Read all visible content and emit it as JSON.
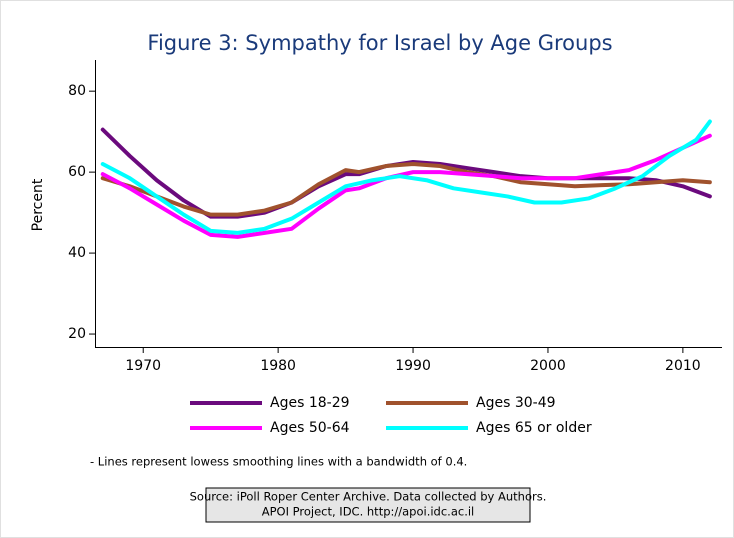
{
  "chart_data": {
    "type": "line",
    "title": "Figure 3: Sympathy for Israel by Age Groups",
    "y_label": "Percent",
    "xlim": [
      1966.5,
      2012.9
    ],
    "xticks": [
      1970,
      1980,
      1990,
      2000,
      2010
    ],
    "ylim": [
      16.8,
      87.7
    ],
    "yticks": [
      20,
      40,
      60,
      80
    ],
    "grid": false,
    "legend": "bottom",
    "series": [
      {
        "name": "Ages 18-29",
        "color": "#6b0a7d",
        "x": [
          1967,
          1969,
          1971,
          1973,
          1975,
          1977,
          1979,
          1981,
          1983,
          1985,
          1986,
          1988,
          1990,
          1992,
          1994,
          1996,
          1998,
          2000,
          2002,
          2004,
          2006,
          2008,
          2010,
          2012
        ],
        "values": [
          70.5,
          64,
          58,
          53,
          49,
          49,
          50,
          52.5,
          56.5,
          59.5,
          59.5,
          61.5,
          62.5,
          62,
          61,
          60,
          59,
          58.5,
          58.5,
          58.5,
          58.5,
          58,
          56.5,
          54
        ]
      },
      {
        "name": "Ages 30-49",
        "color": "#a0522d",
        "x": [
          1967,
          1969,
          1971,
          1973,
          1975,
          1977,
          1979,
          1981,
          1983,
          1985,
          1986,
          1988,
          1990,
          1992,
          1994,
          1996,
          1998,
          2000,
          2002,
          2004,
          2006,
          2008,
          2010,
          2012
        ],
        "values": [
          58.5,
          56.5,
          54,
          51.5,
          49.5,
          49.5,
          50.5,
          52.5,
          57,
          60.5,
          60,
          61.5,
          62,
          61.5,
          60,
          59,
          57.5,
          57,
          56.5,
          56.8,
          57,
          57.5,
          58,
          57.5
        ]
      },
      {
        "name": "Ages 50-64",
        "color": "#ff00ff",
        "x": [
          1967,
          1969,
          1971,
          1973,
          1975,
          1977,
          1979,
          1981,
          1983,
          1985,
          1986,
          1988,
          1990,
          1992,
          1994,
          1996,
          1998,
          2000,
          2002,
          2004,
          2006,
          2008,
          2010,
          2012
        ],
        "values": [
          59.5,
          56,
          52,
          48,
          44.5,
          44,
          45,
          46,
          51,
          55.5,
          56,
          58.5,
          60,
          60,
          59.5,
          59,
          58.5,
          58.5,
          58.5,
          59.5,
          60.5,
          63,
          66,
          69
        ]
      },
      {
        "name": "Ages 65 or older",
        "color": "#00ffff",
        "x": [
          1967,
          1969,
          1971,
          1973,
          1975,
          1977,
          1979,
          1981,
          1983,
          1985,
          1987,
          1989,
          1991,
          1993,
          1995,
          1997,
          1999,
          2001,
          2003,
          2005,
          2007,
          2009,
          2011,
          2012
        ],
        "values": [
          62,
          58.5,
          54,
          49.5,
          45.5,
          45,
          46,
          48.5,
          52.5,
          56.5,
          58,
          59,
          58,
          56,
          55,
          54,
          52.5,
          52.5,
          53.5,
          56,
          59,
          64,
          68,
          72.5
        ]
      }
    ],
    "note": "- Lines represent lowess smoothing lines with a bandwidth of 0.4.",
    "source": [
      "Source: iPoll Roper Center Archive. Data collected by Authors.",
      "APOI Project, IDC. http://apoi.idc.ac.il"
    ]
  }
}
